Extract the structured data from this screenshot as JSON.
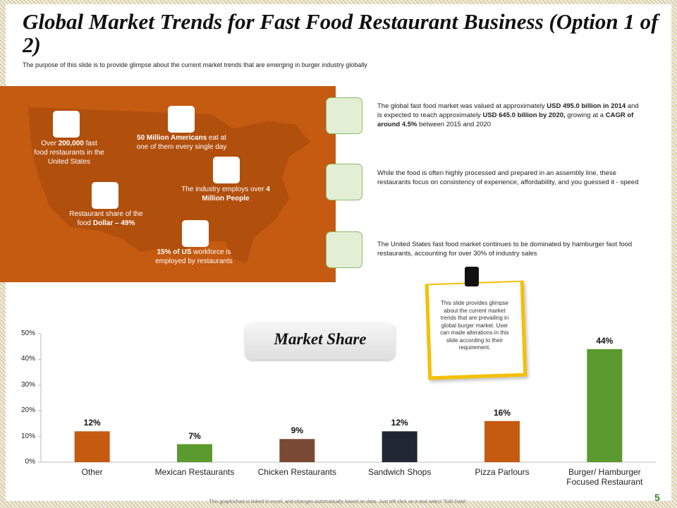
{
  "header": {
    "title": "Global Market Trends for Fast Food Restaurant Business (Option 1 of 2)",
    "subtitle": "The purpose of this slide is to provide glimpse about the current market trends that are emerging in burger industry globally"
  },
  "map_stats": [
    [
      "Over ",
      {
        "text": "200,000",
        "bold": true
      },
      " fast food restaurants in the United States"
    ],
    [
      {
        "text": "50 Million Americans",
        "bold": true
      },
      " eat at one of them every single day"
    ],
    [
      "The industry employs over ",
      {
        "text": "4 Million People",
        "bold": true
      }
    ],
    [
      "Restaurant share of the food ",
      {
        "text": "Dollar – 49%",
        "bold": true
      }
    ],
    [
      {
        "text": "15% of US",
        "bold": true
      },
      " workforce is employed by restaurants"
    ]
  ],
  "trends": [
    [
      "The global fast food market was valued at approximately ",
      {
        "text": "USD 495.0 billion in 2014",
        "bold": true
      },
      " and is expected to reach approximately ",
      {
        "text": "USD 645.0 billion by 2020,",
        "bold": true
      },
      " growing at a ",
      {
        "text": "CAGR of around 4.5%",
        "bold": true
      },
      " between 2015 and 2020"
    ],
    [
      "While the food is often highly processed and prepared in an assembly line, these restaurants focus on consistency of experience, affordability, and you guessed it - speed"
    ],
    [
      "The United States fast food market continues to be dominated by hamburger fast food restaurants, accounting for over 30% of industry sales"
    ]
  ],
  "note": "This slide provides glimpse about the current market trends that are prevailing in global burger market. User can made alterations in this slide according to their requirement.",
  "chart_data": {
    "type": "bar",
    "title": "Market Share",
    "categories": [
      "Other",
      "Mexican Restaurants",
      "Chicken Restaurants",
      "Sandwich Shops",
      "Pizza Parlours",
      "Burger/ Hamburger Focused Restaurant"
    ],
    "values": [
      12,
      7,
      9,
      12,
      16,
      44
    ],
    "value_labels": [
      "12%",
      "7%",
      "9%",
      "12%",
      "16%",
      "44%"
    ],
    "colors": [
      "#c55a11",
      "#5b9a2e",
      "#7b4a36",
      "#1f2733",
      "#c55a11",
      "#5b9a2e"
    ],
    "ylim": [
      0,
      50
    ],
    "yticks": [
      {
        "value": 0,
        "label": "0%"
      },
      {
        "value": 10,
        "label": "10%"
      },
      {
        "value": 20,
        "label": "20%"
      },
      {
        "value": 30,
        "label": "30%"
      },
      {
        "value": 40,
        "label": "40%"
      },
      {
        "value": 50,
        "label": "50%"
      }
    ]
  },
  "footer": {
    "note": "This graph/chart is linked to excel, and changes automatically based on data. Just left click on it and select \"Edit Data\".",
    "page": "5"
  }
}
